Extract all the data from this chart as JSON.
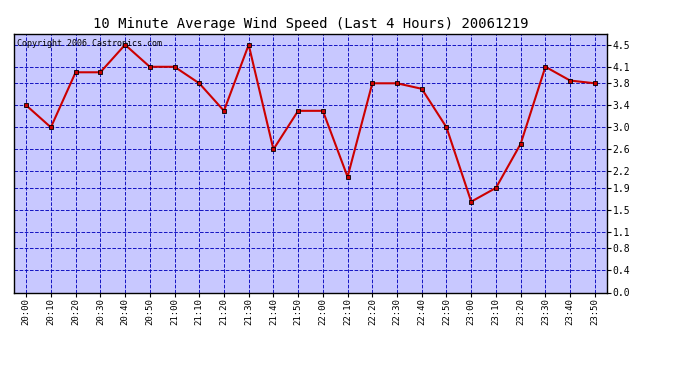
{
  "title": "10 Minute Average Wind Speed (Last 4 Hours) 20061219",
  "copyright": "Copyright 2006 Castronics.com",
  "x_labels": [
    "20:00",
    "20:10",
    "20:20",
    "20:30",
    "20:40",
    "20:50",
    "21:00",
    "21:10",
    "21:20",
    "21:30",
    "21:40",
    "21:50",
    "22:00",
    "22:10",
    "22:20",
    "22:30",
    "22:40",
    "22:50",
    "23:00",
    "23:10",
    "23:20",
    "23:30",
    "23:40",
    "23:50"
  ],
  "y_values": [
    3.4,
    3.0,
    4.0,
    4.0,
    4.5,
    4.1,
    4.1,
    3.8,
    3.3,
    4.5,
    2.6,
    3.3,
    3.3,
    2.1,
    3.8,
    3.8,
    3.7,
    3.0,
    1.65,
    1.9,
    2.7,
    4.1,
    3.85,
    3.8
  ],
  "line_color": "#cc0000",
  "marker_color": "#cc0000",
  "outer_bg_color": "#ffffff",
  "plot_bg_color": "#c8c8ff",
  "grid_color": "#0000bb",
  "title_color": "#000000",
  "ylim_min": 0.0,
  "ylim_max": 4.7,
  "yticks": [
    0.0,
    0.4,
    0.8,
    1.1,
    1.5,
    1.9,
    2.2,
    2.6,
    3.0,
    3.4,
    3.8,
    4.1,
    4.5
  ]
}
